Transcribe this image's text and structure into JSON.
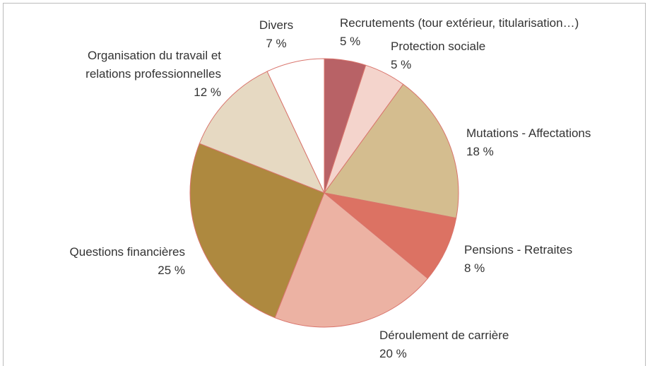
{
  "chart_data": {
    "type": "pie",
    "categories": [
      "Recrutements (tour extérieur, titularisation…)",
      "Protection sociale",
      "Mutations - Affectations",
      "Pensions - Retraites",
      "Déroulement de carrière",
      "Questions financières",
      "Organisation du travail et relations professionnelles",
      "Divers"
    ],
    "values": [
      5,
      5,
      18,
      8,
      20,
      25,
      12,
      7
    ],
    "value_labels": [
      "5 %",
      "5 %",
      "18 %",
      "8 %",
      "20 %",
      "25 %",
      "12 %",
      "7 %"
    ],
    "colors": [
      "#b86266",
      "#f4d4cc",
      "#d4bd8f",
      "#dc7263",
      "#ecb2a3",
      "#ae893f",
      "#e6d9c2",
      "#ffffff"
    ]
  }
}
